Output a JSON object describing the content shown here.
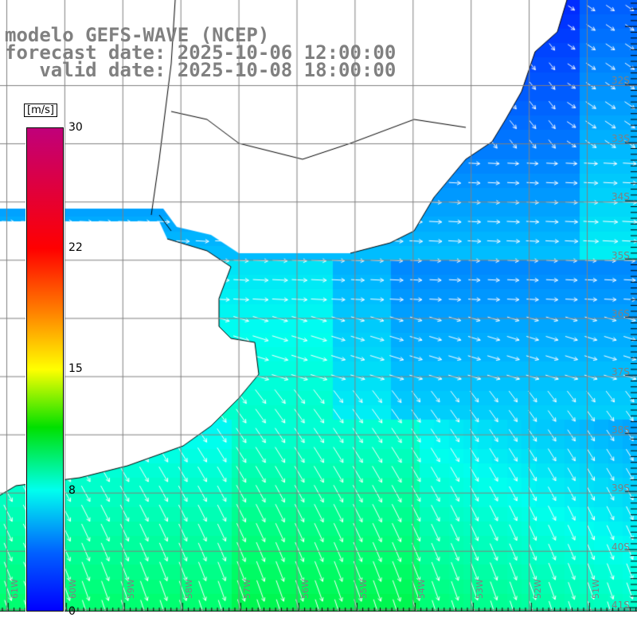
{
  "title": {
    "line1": "modelo GEFS-WAVE (NCEP)",
    "line2": "forecast date: 2025-10-06 12:00:00",
    "line3": "   valid date: 2025-10-08 18:00:00"
  },
  "colorbar": {
    "unit": "[m/s]",
    "labels": [
      "30",
      "22",
      "15",
      "8",
      "0"
    ],
    "values": [
      30,
      22,
      15,
      8,
      0
    ]
  },
  "lat_labels": [
    "32S",
    "33S",
    "34S",
    "35S",
    "36S",
    "37S",
    "38S",
    "39S",
    "40S",
    "41S"
  ],
  "lon_labels": [
    "61W",
    "60W",
    "59W",
    "58W",
    "57W",
    "56W",
    "55W",
    "54W",
    "53W",
    "52W",
    "51W"
  ],
  "colors": {
    "grid": "#808080",
    "land": "#ffffff",
    "coast": "#000000",
    "arrow": "#ffffff",
    "label": "#808080"
  }
}
